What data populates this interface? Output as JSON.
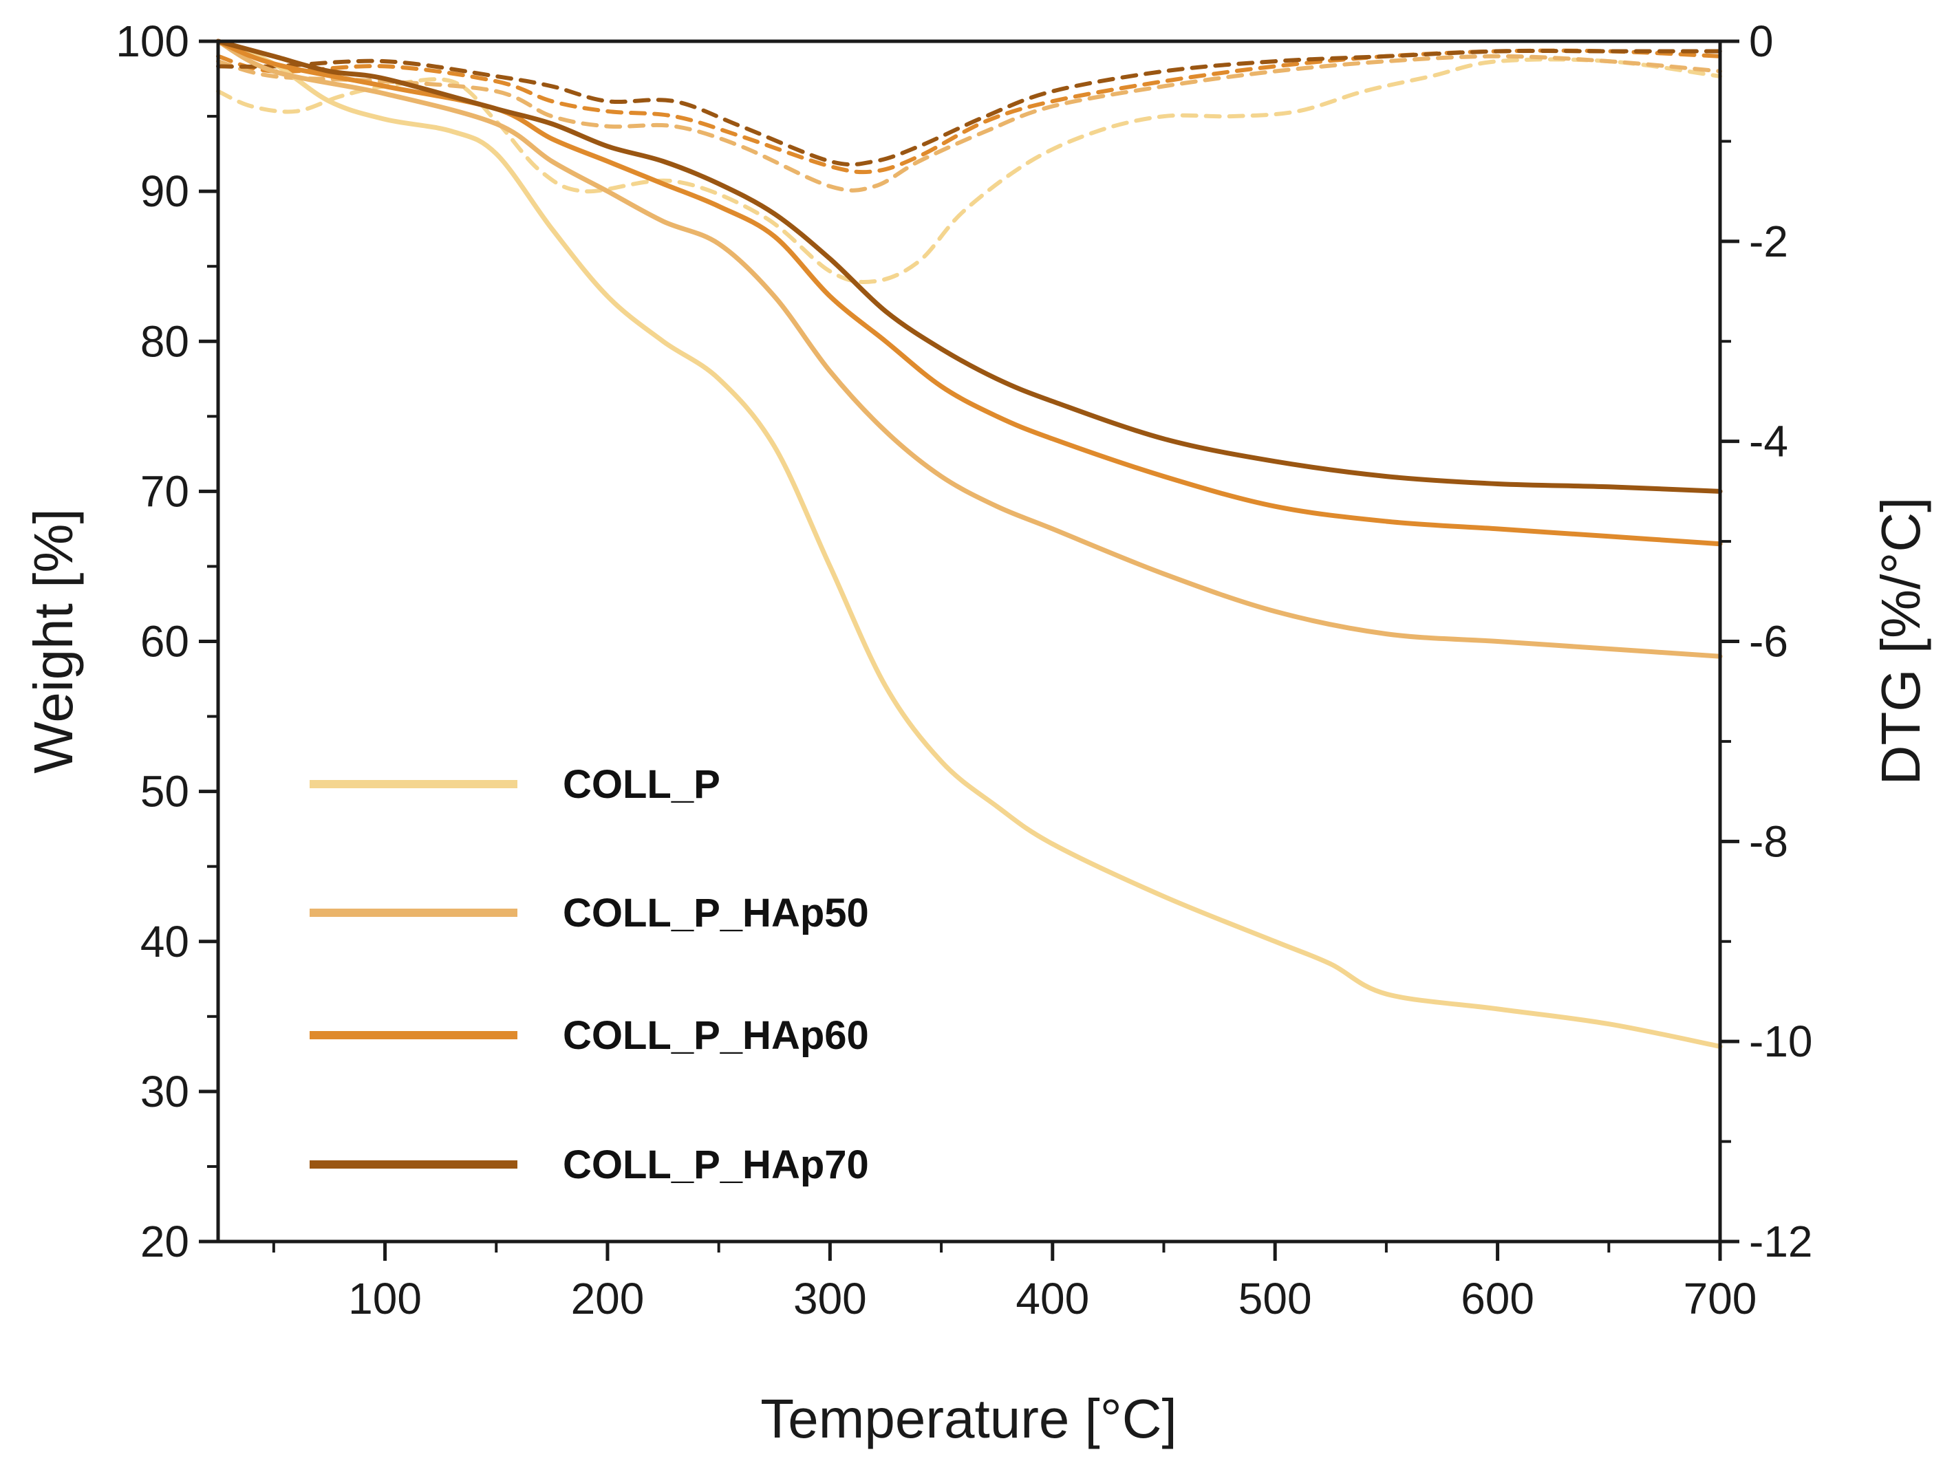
{
  "chart_data": {
    "type": "line",
    "title": "",
    "xlabel": "Temperature [°C]",
    "ylabel": "Weight [%]",
    "y2label": "DTG [%/°C]",
    "xlim": [
      25,
      700
    ],
    "ylim": [
      20,
      100
    ],
    "y2lim": [
      -12,
      0
    ],
    "x_ticks": [
      100,
      200,
      300,
      400,
      500,
      600,
      700
    ],
    "y_ticks": [
      20,
      30,
      40,
      50,
      60,
      70,
      80,
      90,
      100
    ],
    "y2_ticks": [
      0,
      -2,
      -4,
      -6,
      -8,
      -10,
      -12
    ],
    "grid": false,
    "legend_position": "lower-left",
    "series": [
      {
        "name": "COLL_P",
        "color": "#f4d58f",
        "weight": [
          [
            25,
            100
          ],
          [
            50,
            98.5
          ],
          [
            75,
            96
          ],
          [
            100,
            94.8
          ],
          [
            130,
            94
          ],
          [
            150,
            92.5
          ],
          [
            175,
            87.5
          ],
          [
            200,
            83
          ],
          [
            225,
            80
          ],
          [
            250,
            77.5
          ],
          [
            275,
            73
          ],
          [
            300,
            65
          ],
          [
            325,
            57
          ],
          [
            350,
            52
          ],
          [
            375,
            49
          ],
          [
            400,
            46.5
          ],
          [
            450,
            43
          ],
          [
            500,
            40
          ],
          [
            525,
            38.5
          ],
          [
            550,
            36.5
          ],
          [
            600,
            35.5
          ],
          [
            650,
            34.5
          ],
          [
            700,
            33
          ]
        ],
        "dtg": [
          [
            25,
            -0.5
          ],
          [
            40,
            -0.65
          ],
          [
            60,
            -0.7
          ],
          [
            80,
            -0.55
          ],
          [
            100,
            -0.45
          ],
          [
            130,
            -0.4
          ],
          [
            150,
            -0.8
          ],
          [
            170,
            -1.3
          ],
          [
            190,
            -1.5
          ],
          [
            230,
            -1.4
          ],
          [
            270,
            -1.75
          ],
          [
            300,
            -2.3
          ],
          [
            320,
            -2.4
          ],
          [
            340,
            -2.2
          ],
          [
            360,
            -1.7
          ],
          [
            390,
            -1.2
          ],
          [
            420,
            -0.9
          ],
          [
            450,
            -0.75
          ],
          [
            480,
            -0.75
          ],
          [
            510,
            -0.7
          ],
          [
            540,
            -0.5
          ],
          [
            570,
            -0.35
          ],
          [
            600,
            -0.2
          ],
          [
            650,
            -0.2
          ],
          [
            700,
            -0.35
          ]
        ]
      },
      {
        "name": "COLL_P_HAp50",
        "color": "#eab46a",
        "weight": [
          [
            25,
            100
          ],
          [
            50,
            98
          ],
          [
            100,
            96.5
          ],
          [
            150,
            94.5
          ],
          [
            175,
            92
          ],
          [
            200,
            90
          ],
          [
            225,
            88
          ],
          [
            250,
            86.5
          ],
          [
            275,
            83
          ],
          [
            300,
            78
          ],
          [
            325,
            74
          ],
          [
            350,
            71
          ],
          [
            375,
            69
          ],
          [
            400,
            67.5
          ],
          [
            450,
            64.5
          ],
          [
            500,
            62
          ],
          [
            550,
            60.5
          ],
          [
            600,
            60
          ],
          [
            650,
            59.5
          ],
          [
            700,
            59
          ]
        ],
        "dtg": [
          [
            25,
            -0.2
          ],
          [
            50,
            -0.35
          ],
          [
            100,
            -0.4
          ],
          [
            150,
            -0.5
          ],
          [
            175,
            -0.75
          ],
          [
            200,
            -0.85
          ],
          [
            230,
            -0.85
          ],
          [
            260,
            -1.05
          ],
          [
            300,
            -1.45
          ],
          [
            320,
            -1.45
          ],
          [
            340,
            -1.2
          ],
          [
            370,
            -0.9
          ],
          [
            400,
            -0.65
          ],
          [
            450,
            -0.45
          ],
          [
            500,
            -0.3
          ],
          [
            550,
            -0.2
          ],
          [
            600,
            -0.15
          ],
          [
            650,
            -0.2
          ],
          [
            700,
            -0.3
          ]
        ]
      },
      {
        "name": "COLL_P_HAp60",
        "color": "#df8a2c",
        "weight": [
          [
            25,
            100
          ],
          [
            50,
            98.5
          ],
          [
            100,
            97
          ],
          [
            150,
            95.5
          ],
          [
            175,
            93.5
          ],
          [
            200,
            92
          ],
          [
            225,
            90.5
          ],
          [
            250,
            89
          ],
          [
            275,
            87
          ],
          [
            300,
            83
          ],
          [
            325,
            80
          ],
          [
            350,
            77
          ],
          [
            375,
            75
          ],
          [
            400,
            73.5
          ],
          [
            450,
            71
          ],
          [
            500,
            69
          ],
          [
            550,
            68
          ],
          [
            600,
            67.5
          ],
          [
            650,
            67
          ],
          [
            700,
            66.5
          ]
        ],
        "dtg": [
          [
            25,
            -0.15
          ],
          [
            50,
            -0.3
          ],
          [
            100,
            -0.25
          ],
          [
            150,
            -0.4
          ],
          [
            175,
            -0.6
          ],
          [
            200,
            -0.7
          ],
          [
            230,
            -0.75
          ],
          [
            260,
            -0.95
          ],
          [
            300,
            -1.25
          ],
          [
            320,
            -1.3
          ],
          [
            340,
            -1.15
          ],
          [
            370,
            -0.8
          ],
          [
            400,
            -0.6
          ],
          [
            450,
            -0.4
          ],
          [
            500,
            -0.25
          ],
          [
            550,
            -0.15
          ],
          [
            600,
            -0.1
          ],
          [
            650,
            -0.1
          ],
          [
            700,
            -0.15
          ]
        ]
      },
      {
        "name": "COLL_P_HAp70",
        "color": "#9a5612",
        "weight": [
          [
            25,
            100
          ],
          [
            50,
            99
          ],
          [
            75,
            98
          ],
          [
            100,
            97.5
          ],
          [
            150,
            95.5
          ],
          [
            175,
            94.5
          ],
          [
            200,
            93
          ],
          [
            225,
            92
          ],
          [
            250,
            90.5
          ],
          [
            275,
            88.5
          ],
          [
            300,
            85.5
          ],
          [
            325,
            82
          ],
          [
            350,
            79.5
          ],
          [
            375,
            77.5
          ],
          [
            400,
            76
          ],
          [
            450,
            73.5
          ],
          [
            500,
            72
          ],
          [
            550,
            71
          ],
          [
            600,
            70.5
          ],
          [
            650,
            70.3
          ],
          [
            700,
            70
          ]
        ],
        "dtg": [
          [
            25,
            -0.25
          ],
          [
            50,
            -0.25
          ],
          [
            100,
            -0.2
          ],
          [
            150,
            -0.35
          ],
          [
            175,
            -0.45
          ],
          [
            200,
            -0.6
          ],
          [
            230,
            -0.6
          ],
          [
            260,
            -0.85
          ],
          [
            300,
            -1.2
          ],
          [
            320,
            -1.2
          ],
          [
            340,
            -1.05
          ],
          [
            370,
            -0.75
          ],
          [
            400,
            -0.5
          ],
          [
            450,
            -0.3
          ],
          [
            500,
            -0.2
          ],
          [
            550,
            -0.15
          ],
          [
            600,
            -0.1
          ],
          [
            650,
            -0.1
          ],
          [
            700,
            -0.1
          ]
        ]
      }
    ]
  }
}
